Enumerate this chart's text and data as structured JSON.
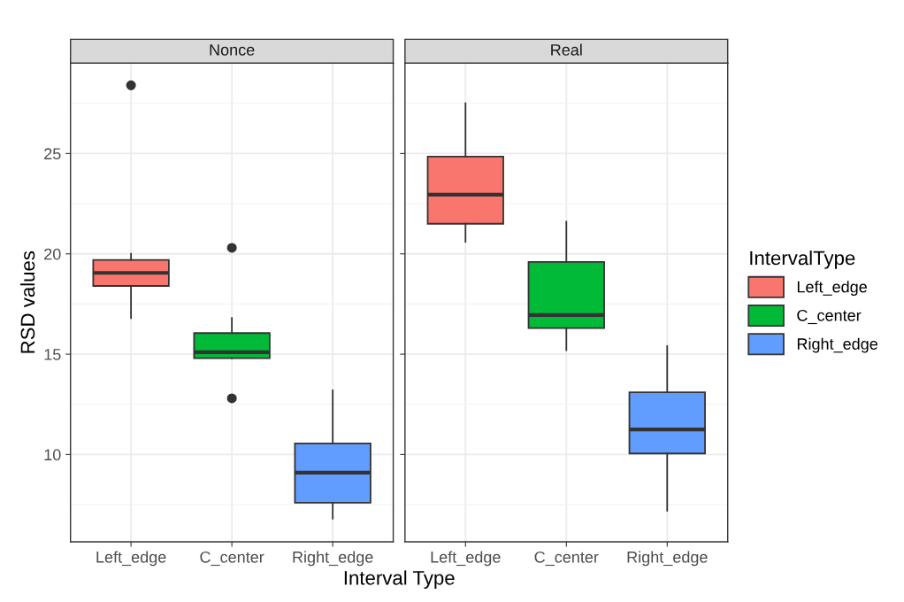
{
  "chart_data": [
    {
      "type": "box",
      "title": "Nonce",
      "xlabel": "Interval Type",
      "ylabel": "RSD values",
      "categories": [
        "Left_edge",
        "C_center",
        "Right_edge"
      ],
      "series": [
        {
          "color": "#f8766d",
          "boxes": [
            {
              "low": 16.8,
              "q1": 18.4,
              "median": 19.05,
              "q3": 19.7,
              "high": 20.0,
              "outliers": [
                28.4
              ]
            },
            null,
            null
          ]
        },
        {
          "color": "#00ba38",
          "boxes": [
            null,
            {
              "low": 14.8,
              "q1": 14.8,
              "median": 15.1,
              "q3": 16.05,
              "high": 16.8,
              "outliers": [
                20.3,
                12.8
              ]
            },
            null
          ]
        },
        {
          "color": "#619cff",
          "boxes": [
            null,
            null,
            {
              "low": 6.8,
              "q1": 7.6,
              "median": 9.1,
              "q3": 10.55,
              "high": 13.2
            }
          ]
        }
      ],
      "ylim": [
        5.65,
        29.5
      ],
      "yticks": [
        {
          "value": 7.5,
          "label": null
        },
        10,
        {
          "value": 12.5,
          "label": null
        },
        15,
        {
          "value": 17.5,
          "label": null
        },
        20,
        {
          "value": 22.5,
          "label": null
        },
        25,
        {
          "value": 27.5,
          "label": null
        }
      ],
      "grid": true
    },
    {
      "type": "box",
      "title": "Real",
      "legend_title": "IntervalType",
      "legend": "right",
      "tick_labels": "x",
      "categories": [
        "Left_edge",
        "C_center",
        "Right_edge"
      ],
      "series": [
        {
          "name": "Left_edge",
          "color": "#f8766d",
          "boxes": [
            {
              "low": 20.6,
              "q1": 21.5,
              "median": 22.95,
              "q3": 24.85,
              "high": 27.5
            },
            null,
            null
          ]
        },
        {
          "name": "C_center",
          "color": "#00ba38",
          "boxes": [
            null,
            {
              "low": 15.2,
              "q1": 16.3,
              "median": 16.95,
              "q3": 19.6,
              "high": 21.6
            },
            null
          ]
        },
        {
          "name": "Right_edge",
          "color": "#619cff",
          "boxes": [
            null,
            null,
            {
              "low": 7.2,
              "q1": 10.05,
              "median": 11.25,
              "q3": 13.1,
              "high": 15.4
            }
          ]
        }
      ],
      "ylim": [
        5.65,
        29.5
      ],
      "yticks": [
        {
          "value": 7.5,
          "label": null
        },
        10,
        {
          "value": 12.5,
          "label": null
        },
        15,
        {
          "value": 17.5,
          "label": null
        },
        20,
        {
          "value": 22.5,
          "label": null
        },
        25,
        {
          "value": 27.5,
          "label": null
        }
      ],
      "grid": true
    }
  ]
}
